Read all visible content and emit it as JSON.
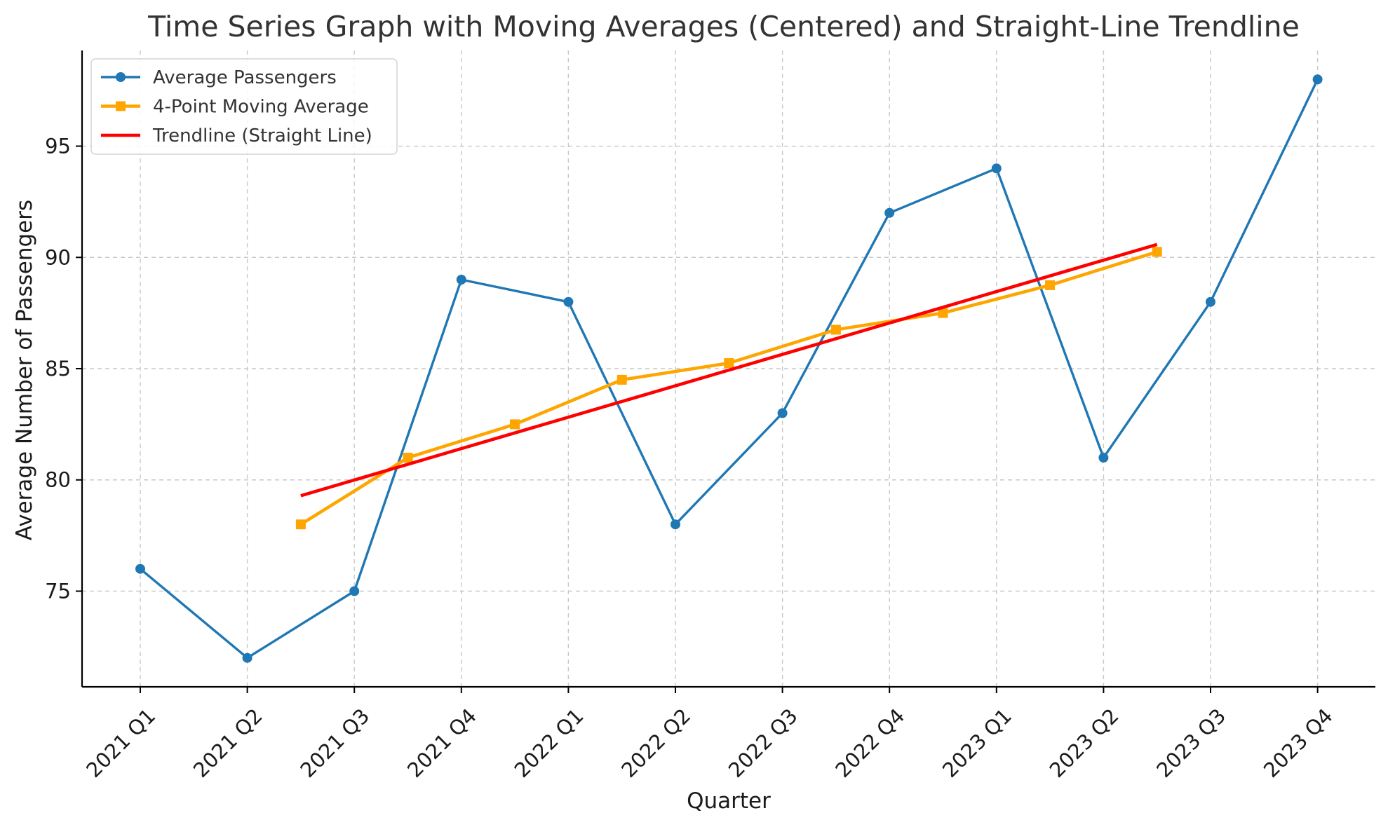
{
  "chart_data": {
    "type": "line",
    "title": "Time Series Graph with Moving Averages (Centered) and Straight-Line Trendline",
    "xlabel": "Quarter",
    "ylabel": "Average Number of Passengers",
    "categories": [
      "2021 Q1",
      "2021 Q2",
      "2021 Q3",
      "2021 Q4",
      "2022 Q1",
      "2022 Q2",
      "2022 Q3",
      "2022 Q4",
      "2023 Q1",
      "2023 Q2",
      "2023 Q3",
      "2023 Q4"
    ],
    "yticks": [
      75,
      80,
      85,
      90,
      95
    ],
    "ylim": [
      70.7,
      99.3
    ],
    "grid": true,
    "legend_position": "top-left",
    "series": [
      {
        "name": "Average Passengers",
        "color": "#1f77b4",
        "marker": "circle",
        "x": [
          0,
          1,
          2,
          3,
          4,
          5,
          6,
          7,
          8,
          9,
          10,
          11
        ],
        "values": [
          76,
          72,
          75,
          89,
          88,
          78,
          83,
          92,
          94,
          81,
          88,
          98
        ]
      },
      {
        "name": "4-Point Moving Average",
        "color": "#ffa500",
        "marker": "square",
        "x": [
          1.5,
          2.5,
          3.5,
          4.5,
          5.5,
          6.5,
          7.5,
          8.5,
          9.5
        ],
        "values": [
          78.0,
          81.0,
          82.5,
          84.5,
          85.25,
          86.75,
          87.5,
          88.75,
          90.25
        ]
      },
      {
        "name": "Trendline (Straight Line)",
        "color": "#ff0000",
        "marker": "none",
        "x": [
          1.5,
          9.5
        ],
        "values": [
          79.29,
          90.58
        ]
      }
    ]
  }
}
